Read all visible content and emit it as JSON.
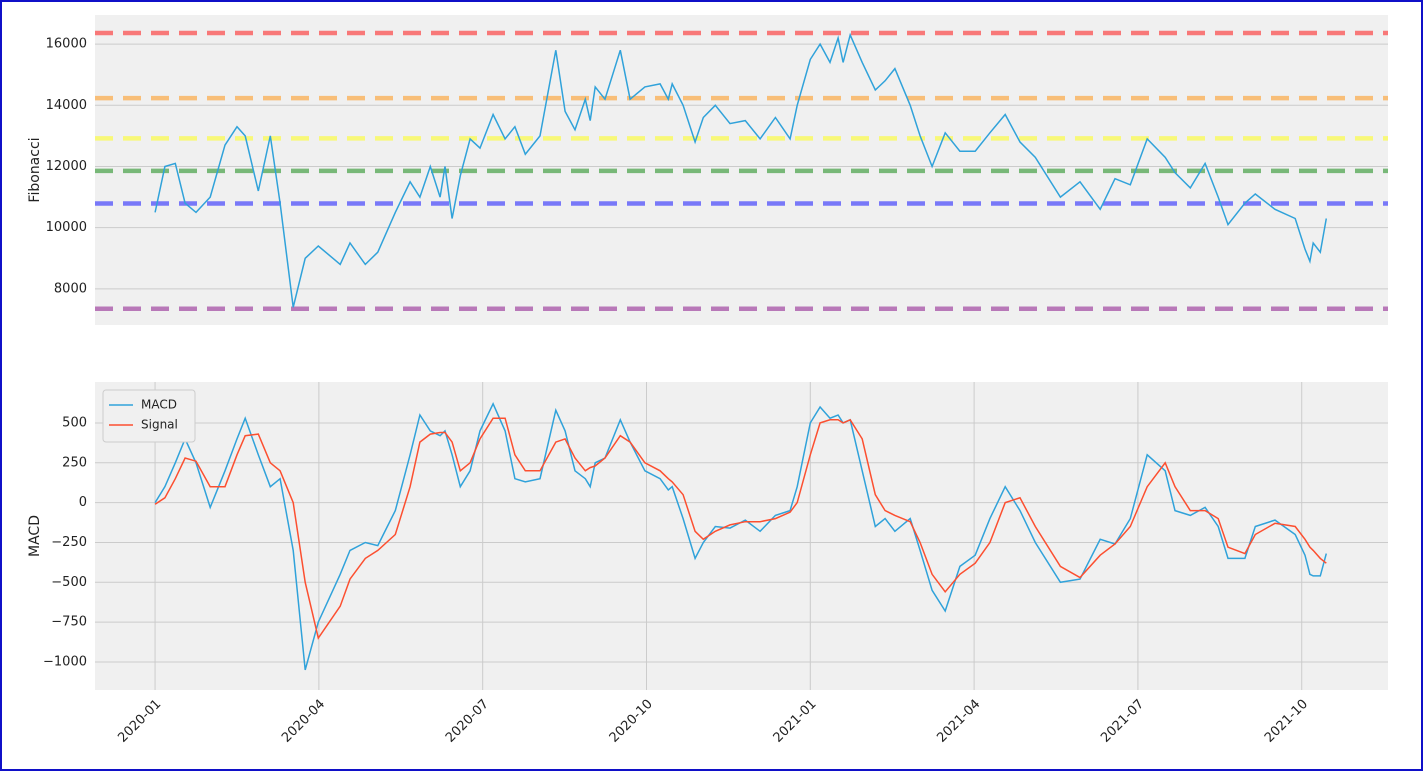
{
  "chart_data": [
    {
      "type": "line",
      "ylabel": "Fibonacci",
      "grid": "y",
      "x": [
        0,
        0.18,
        0.37,
        0.55,
        0.75,
        1.01,
        1.28,
        1.5,
        1.65,
        1.89,
        2.11,
        2.29,
        2.53,
        2.75,
        2.99,
        3.39,
        3.57,
        3.85,
        4.08,
        4.4,
        4.67,
        4.85,
        5.04,
        5.22,
        5.31,
        5.44,
        5.59,
        5.77,
        5.95,
        6.19,
        6.41,
        6.59,
        6.78,
        7.05,
        7.34,
        7.51,
        7.69,
        7.88,
        7.97,
        8.06,
        8.24,
        8.52,
        8.7,
        8.97,
        9.25,
        9.4,
        9.47,
        9.67,
        9.89,
        10.04,
        10.26,
        10.53,
        10.81,
        11.08,
        11.36,
        11.63,
        11.76,
        12.0,
        12.18,
        12.36,
        12.51,
        12.6,
        12.73,
        12.95,
        13.19,
        13.37,
        13.55,
        13.83,
        14.01,
        14.23,
        14.47,
        14.74,
        15.02,
        15.29,
        15.57,
        15.84,
        16.12,
        16.58,
        16.94,
        17.31,
        17.58,
        17.86,
        18.17,
        18.5,
        18.68,
        18.96,
        19.23,
        19.47,
        19.65,
        19.96,
        20.15,
        20.51,
        20.88,
        21.06,
        21.15,
        21.21,
        21.34,
        21.45
      ],
      "series": [
        {
          "color": "#30a2da",
          "values": [
            10500,
            12000,
            12100,
            10800,
            10500,
            11000,
            12700,
            13300,
            13000,
            11200,
            13000,
            10800,
            7400,
            9000,
            9400,
            8800,
            9500,
            8800,
            9200,
            10500,
            11500,
            11000,
            12000,
            11000,
            12000,
            10300,
            11700,
            12900,
            12600,
            13700,
            12900,
            13300,
            12400,
            13000,
            15800,
            13800,
            13200,
            14200,
            13500,
            14600,
            14200,
            15800,
            14200,
            14600,
            14700,
            14200,
            14700,
            14000,
            12800,
            13600,
            14000,
            13400,
            13500,
            12900,
            13600,
            12900,
            14000,
            15500,
            16000,
            15400,
            16200,
            15400,
            16300,
            15400,
            14500,
            14800,
            15200,
            14000,
            13000,
            12000,
            13100,
            12500,
            12500,
            13100,
            13700,
            12800,
            12300,
            11000,
            11500,
            10600,
            11600,
            11400,
            12900,
            12300,
            11800,
            11300,
            12100,
            11000,
            10100,
            10800,
            11100,
            10600,
            10300,
            9300,
            8900,
            9500,
            9200,
            10300
          ]
        }
      ],
      "reference_lines": [
        {
          "value": 16360,
          "color": "#ff0000"
        },
        {
          "value": 14234,
          "color": "#ff8c00"
        },
        {
          "value": 12918,
          "color": "#ffff00"
        },
        {
          "value": 11855,
          "color": "#008000"
        },
        {
          "value": 10792,
          "color": "#0000ff"
        },
        {
          "value": 7350,
          "color": "#800080"
        }
      ],
      "xlim": [
        -1.1,
        22.58
      ],
      "ylim": [
        6820,
        16950
      ],
      "yticks": [
        8000,
        10000,
        12000,
        14000,
        16000
      ]
    },
    {
      "type": "line",
      "ylabel": "MACD",
      "grid": "both",
      "legend": "upper left",
      "x": [
        0,
        0.18,
        0.37,
        0.55,
        0.75,
        1.01,
        1.28,
        1.5,
        1.65,
        1.89,
        2.11,
        2.29,
        2.53,
        2.75,
        2.99,
        3.39,
        3.57,
        3.85,
        4.08,
        4.4,
        4.67,
        4.85,
        5.04,
        5.22,
        5.31,
        5.44,
        5.59,
        5.77,
        5.95,
        6.19,
        6.41,
        6.59,
        6.78,
        7.05,
        7.34,
        7.51,
        7.69,
        7.88,
        7.97,
        8.06,
        8.24,
        8.52,
        8.7,
        8.97,
        9.25,
        9.4,
        9.47,
        9.67,
        9.89,
        10.04,
        10.26,
        10.53,
        10.81,
        11.08,
        11.36,
        11.63,
        11.76,
        12.0,
        12.18,
        12.36,
        12.51,
        12.6,
        12.73,
        12.95,
        13.19,
        13.37,
        13.55,
        13.83,
        14.01,
        14.23,
        14.47,
        14.74,
        15.02,
        15.29,
        15.57,
        15.84,
        16.12,
        16.58,
        16.94,
        17.31,
        17.58,
        17.86,
        18.17,
        18.5,
        18.68,
        18.96,
        19.23,
        19.47,
        19.65,
        19.96,
        20.15,
        20.51,
        20.88,
        21.06,
        21.15,
        21.21,
        21.34,
        21.45
      ],
      "series": [
        {
          "name": "MACD",
          "color": "#30a2da",
          "values": [
            0,
            100,
            250,
            400,
            250,
            -30,
            200,
            400,
            530,
            300,
            100,
            150,
            -300,
            -1050,
            -750,
            -450,
            -300,
            -250,
            -270,
            -50,
            300,
            550,
            450,
            420,
            450,
            300,
            100,
            200,
            450,
            620,
            450,
            150,
            130,
            150,
            580,
            450,
            200,
            150,
            100,
            250,
            280,
            520,
            380,
            200,
            150,
            80,
            100,
            -100,
            -350,
            -250,
            -150,
            -160,
            -110,
            -180,
            -80,
            -50,
            100,
            500,
            600,
            530,
            550,
            500,
            520,
            200,
            -150,
            -100,
            -180,
            -100,
            -300,
            -550,
            -680,
            -400,
            -330,
            -100,
            100,
            -50,
            -250,
            -500,
            -480,
            -230,
            -260,
            -100,
            300,
            200,
            -50,
            -80,
            -30,
            -150,
            -350,
            -350,
            -150,
            -110,
            -200,
            -330,
            -450,
            -460,
            -460,
            -320
          ]
        },
        {
          "name": "Signal",
          "color": "#fc4f30",
          "values": [
            -10,
            30,
            150,
            280,
            260,
            100,
            100,
            300,
            420,
            430,
            250,
            200,
            0,
            -500,
            -850,
            -650,
            -480,
            -350,
            -300,
            -200,
            100,
            380,
            430,
            440,
            440,
            380,
            200,
            250,
            400,
            530,
            530,
            300,
            200,
            200,
            380,
            400,
            280,
            200,
            220,
            230,
            280,
            420,
            380,
            250,
            200,
            150,
            130,
            50,
            -180,
            -230,
            -180,
            -140,
            -120,
            -120,
            -100,
            -60,
            0,
            300,
            500,
            520,
            520,
            500,
            520,
            400,
            50,
            -50,
            -80,
            -120,
            -250,
            -450,
            -560,
            -450,
            -380,
            -250,
            0,
            30,
            -150,
            -400,
            -470,
            -330,
            -260,
            -150,
            100,
            250,
            100,
            -50,
            -50,
            -100,
            -280,
            -320,
            -200,
            -130,
            -150,
            -230,
            -280,
            -300,
            -350,
            -380
          ]
        }
      ],
      "xlim": [
        -1.1,
        22.58
      ],
      "ylim": [
        -1176,
        757
      ],
      "yticks": [
        {
          "value": -1000,
          "label": "−1000"
        },
        {
          "value": -750,
          "label": "−750"
        },
        {
          "value": -500,
          "label": "−500"
        },
        {
          "value": -250,
          "label": "−250"
        },
        0,
        250,
        500
      ],
      "xticks": [
        {
          "value": 0,
          "label": "2020-01"
        },
        {
          "value": 3,
          "label": "2020-04"
        },
        {
          "value": 6,
          "label": "2020-07"
        },
        {
          "value": 9,
          "label": "2020-10"
        },
        {
          "value": 12,
          "label": "2021-01"
        },
        {
          "value": 15,
          "label": "2021-04"
        },
        {
          "value": 18,
          "label": "2021-07"
        },
        {
          "value": 21,
          "label": "2021-10"
        }
      ]
    }
  ]
}
